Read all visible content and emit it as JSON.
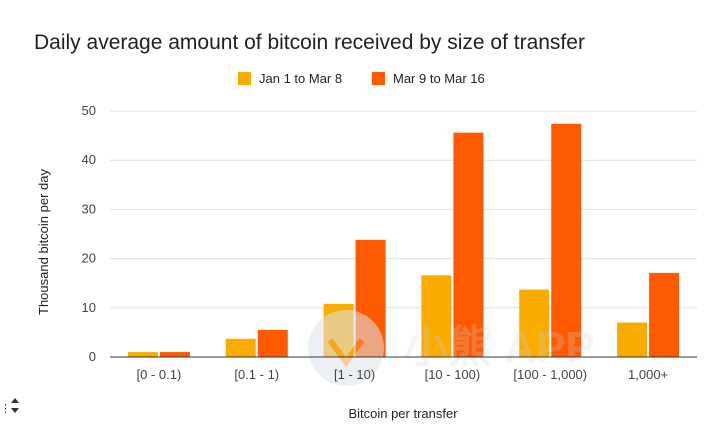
{
  "chart_data": {
    "type": "bar",
    "title": "Daily average amount of bitcoin received by size of transfer",
    "xlabel": "Bitcoin per transfer",
    "ylabel": "Thousand bitcoin per day",
    "categories": [
      "[0 - 0.1)",
      "[0.1 - 1)",
      "[1 - 10)",
      "[10 - 100)",
      "[100 - 1,000)",
      "1,000+"
    ],
    "series": [
      {
        "name": "Jan 1 to Mar 8",
        "color": "#f9ab00",
        "values": [
          1.0,
          3.7,
          10.8,
          16.6,
          13.7,
          7.0
        ]
      },
      {
        "name": "Mar 9 to Mar 16",
        "color": "#ff5a00",
        "values": [
          1.0,
          5.5,
          23.8,
          45.6,
          47.4,
          17.1
        ]
      }
    ],
    "ylim": [
      0,
      50
    ],
    "yticks": [
      0,
      10,
      20,
      30,
      40,
      50
    ],
    "grid": true,
    "legend_position": "top-center"
  },
  "watermark": {
    "text": "小熊 APP",
    "icon": "bear-logo-icon"
  },
  "corner_control": {
    "icon": "sort-arrows-icon",
    "label": "⋮"
  }
}
